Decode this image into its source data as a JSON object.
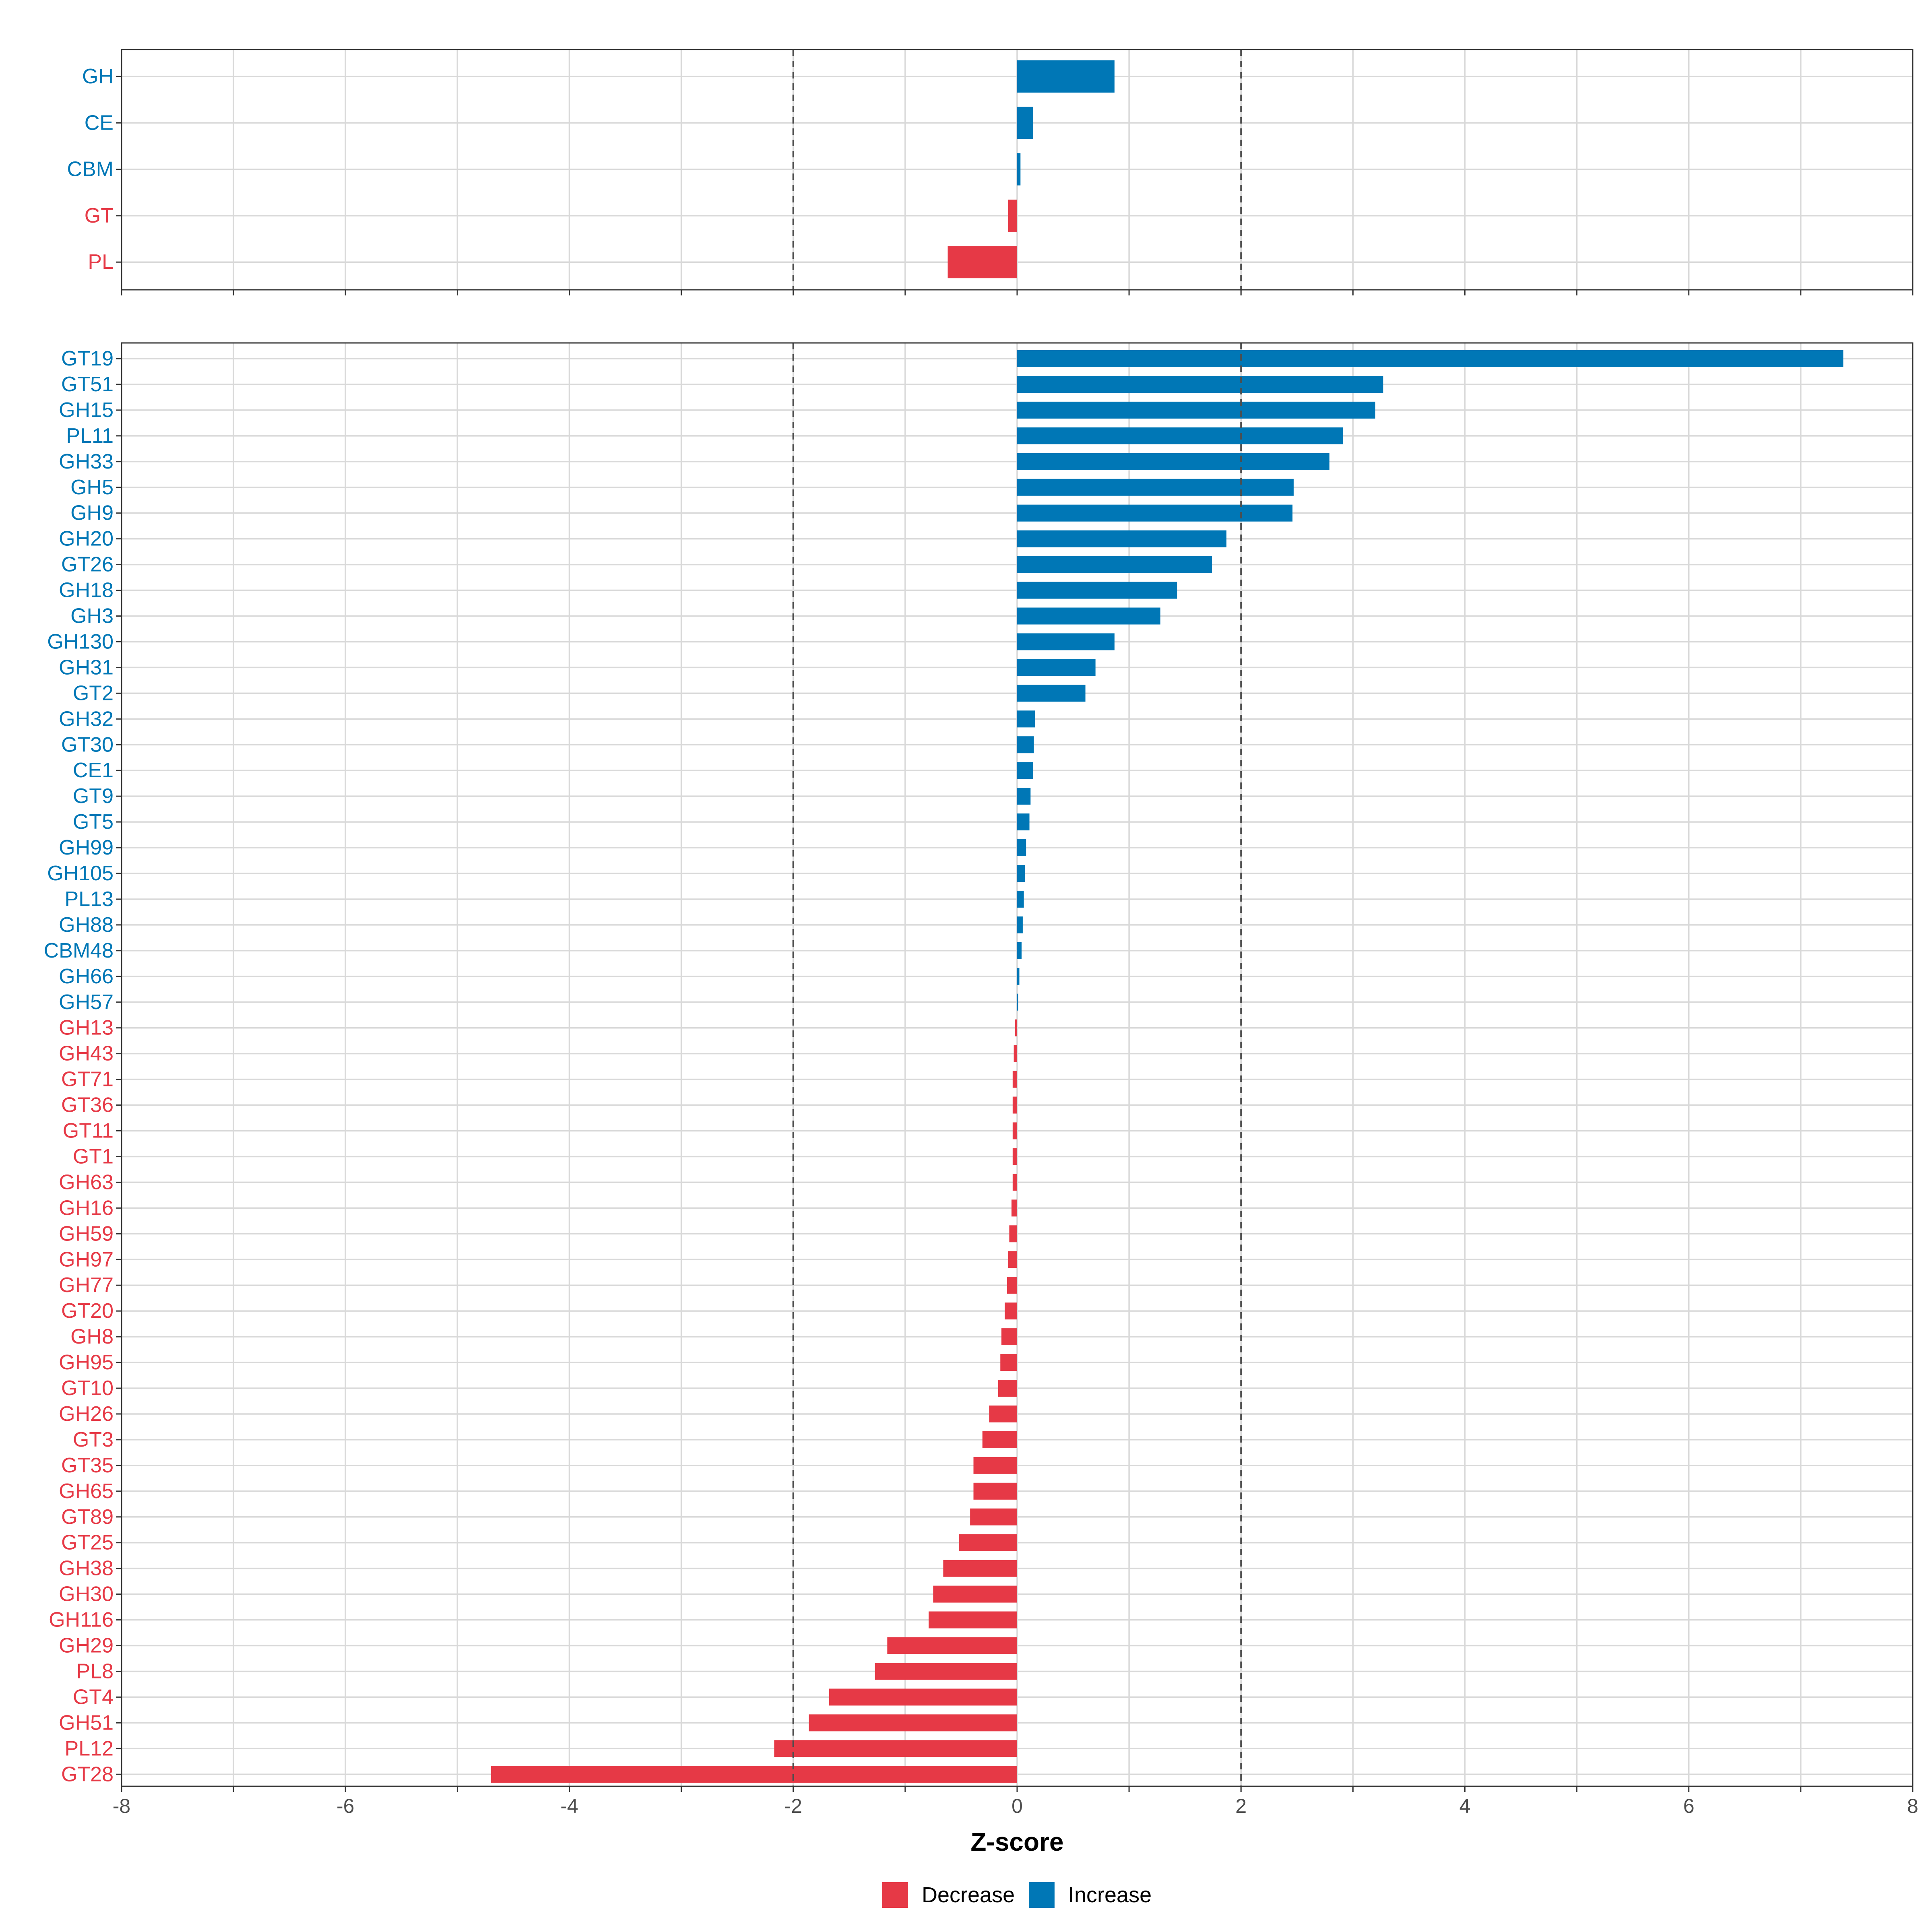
{
  "colors": {
    "decrease": "#E63946",
    "increase": "#0077B6"
  },
  "chart_data": [
    {
      "type": "bar",
      "orientation": "horizontal",
      "panel": "class-level",
      "categories": [
        "GH",
        "CE",
        "CBM",
        "GT",
        "PL"
      ],
      "values": [
        0.87,
        0.14,
        0.03,
        -0.08,
        -0.62
      ],
      "directions": [
        "Increase",
        "Increase",
        "Increase",
        "Decrease",
        "Decrease"
      ],
      "xlim": [
        -8,
        8
      ],
      "reference_lines": [
        -2,
        2
      ],
      "grid": true
    },
    {
      "type": "bar",
      "orientation": "horizontal",
      "panel": "family-level",
      "categories": [
        "GT19",
        "GT51",
        "GH15",
        "PL11",
        "GH33",
        "GH5",
        "GH9",
        "GH20",
        "GT26",
        "GH18",
        "GH3",
        "GH130",
        "GH31",
        "GT2",
        "GH32",
        "GT30",
        "CE1",
        "GT9",
        "GT5",
        "GH99",
        "GH105",
        "PL13",
        "GH88",
        "CBM48",
        "GH66",
        "GH57",
        "GH13",
        "GH43",
        "GT71",
        "GT36",
        "GT11",
        "GT1",
        "GH63",
        "GH16",
        "GH59",
        "GH97",
        "GH77",
        "GT20",
        "GH8",
        "GH95",
        "GT10",
        "GH26",
        "GT3",
        "GT35",
        "GH65",
        "GT89",
        "GT25",
        "GH38",
        "GH30",
        "GH116",
        "GH29",
        "PL8",
        "GT4",
        "GH51",
        "PL12",
        "GT28"
      ],
      "values": [
        7.38,
        3.27,
        3.2,
        2.91,
        2.79,
        2.47,
        2.46,
        1.87,
        1.74,
        1.43,
        1.28,
        0.87,
        0.7,
        0.61,
        0.16,
        0.15,
        0.14,
        0.12,
        0.11,
        0.08,
        0.07,
        0.06,
        0.05,
        0.04,
        0.02,
        0.01,
        -0.02,
        -0.03,
        -0.04,
        -0.04,
        -0.04,
        -0.04,
        -0.04,
        -0.05,
        -0.07,
        -0.08,
        -0.09,
        -0.11,
        -0.14,
        -0.15,
        -0.17,
        -0.25,
        -0.31,
        -0.39,
        -0.39,
        -0.42,
        -0.52,
        -0.66,
        -0.75,
        -0.79,
        -1.16,
        -1.27,
        -1.68,
        -1.86,
        -2.17,
        -4.7
      ],
      "directions": [
        "Increase",
        "Increase",
        "Increase",
        "Increase",
        "Increase",
        "Increase",
        "Increase",
        "Increase",
        "Increase",
        "Increase",
        "Increase",
        "Increase",
        "Increase",
        "Increase",
        "Increase",
        "Increase",
        "Increase",
        "Increase",
        "Increase",
        "Increase",
        "Increase",
        "Increase",
        "Increase",
        "Increase",
        "Increase",
        "Increase",
        "Decrease",
        "Decrease",
        "Decrease",
        "Decrease",
        "Decrease",
        "Decrease",
        "Decrease",
        "Decrease",
        "Decrease",
        "Decrease",
        "Decrease",
        "Decrease",
        "Decrease",
        "Decrease",
        "Decrease",
        "Decrease",
        "Decrease",
        "Decrease",
        "Decrease",
        "Decrease",
        "Decrease",
        "Decrease",
        "Decrease",
        "Decrease",
        "Decrease",
        "Decrease",
        "Decrease",
        "Decrease",
        "Decrease",
        "Decrease"
      ],
      "xlim": [
        -8,
        8
      ],
      "xticks": [
        -8,
        -6,
        -4,
        -2,
        0,
        2,
        4,
        6,
        8
      ],
      "xtick_labels": [
        "-8",
        "-6",
        "-4",
        "-2",
        "0",
        "2",
        "4",
        "6",
        "8"
      ],
      "xlabel": "Z-score",
      "reference_lines": [
        -2,
        2
      ],
      "grid": true
    }
  ],
  "legend": {
    "placement": "bottom",
    "entries": [
      {
        "label": "Decrease",
        "key": "decrease"
      },
      {
        "label": "Increase",
        "key": "increase"
      }
    ]
  }
}
